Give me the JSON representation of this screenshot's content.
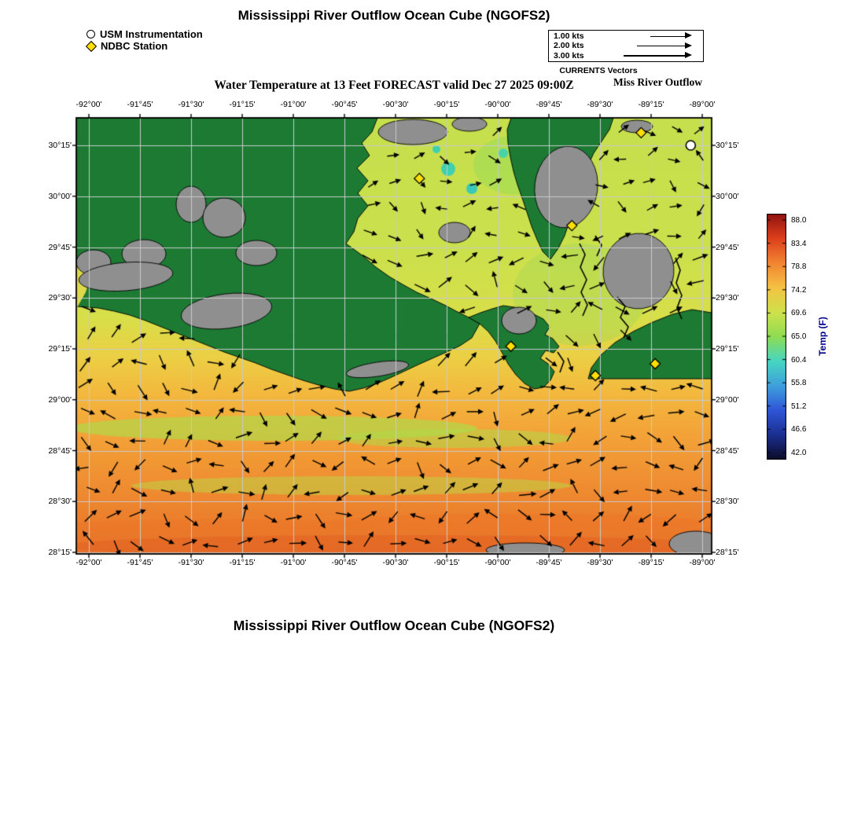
{
  "titles": {
    "top": "Mississippi River Outflow Ocean Cube (NGOFS2)",
    "subtitle": "Water Temperature at 13 Feet FORECAST valid Dec 27 2025 09:00Z",
    "region": "Miss River Outflow",
    "bottom": "Mississippi River Outflow Ocean Cube (NGOFS2)"
  },
  "legend": {
    "usm": "USM Instrumentation",
    "ndbc": "NDBC Station"
  },
  "vector_key": {
    "caption": "CURRENTS Vectors",
    "rows": [
      {
        "label": "1.00 kts",
        "length": 45
      },
      {
        "label": "2.00 kts",
        "length": 62
      },
      {
        "label": "3.00 kts",
        "length": 79
      }
    ]
  },
  "axes": {
    "lon_labels": [
      "-92°00'",
      "-91°45'",
      "-91°30'",
      "-91°15'",
      "-91°00'",
      "-90°45'",
      "-90°30'",
      "-90°15'",
      "-90°00'",
      "-89°45'",
      "-89°30'",
      "-89°15'",
      "-89°00'"
    ],
    "lat_labels": [
      "30°15'",
      "30°00'",
      "29°45'",
      "29°30'",
      "29°15'",
      "29°00'",
      "28°45'",
      "28°30'",
      "28°15'"
    ]
  },
  "colorbar": {
    "title": "Temp (F)",
    "title_color": "#00008b",
    "tick_labels": [
      "88.0",
      "83.4",
      "78.8",
      "74.2",
      "69.6",
      "65.0",
      "60.4",
      "55.8",
      "51.2",
      "46.6",
      "42.0"
    ],
    "stops": [
      {
        "value": 88.0,
        "color": "#8f1210"
      },
      {
        "value": 83.4,
        "color": "#dd3f1c"
      },
      {
        "value": 78.8,
        "color": "#f28432"
      },
      {
        "value": 74.2,
        "color": "#f5c242"
      },
      {
        "value": 69.6,
        "color": "#cfe24b"
      },
      {
        "value": 65.0,
        "color": "#8fdc52"
      },
      {
        "value": 60.4,
        "color": "#46d6c2"
      },
      {
        "value": 55.8,
        "color": "#3fa0dc"
      },
      {
        "value": 51.2,
        "color": "#2f55d8"
      },
      {
        "value": 46.6,
        "color": "#1b2f8f"
      },
      {
        "value": 42.0,
        "color": "#0b0b28"
      }
    ]
  },
  "stations": {
    "ndbc": [
      {
        "fx": 0.54,
        "fy": 0.139
      },
      {
        "fx": 0.889,
        "fy": 0.034
      },
      {
        "fx": 0.78,
        "fy": 0.247
      },
      {
        "fx": 0.684,
        "fy": 0.524
      },
      {
        "fx": 0.817,
        "fy": 0.591
      },
      {
        "fx": 0.911,
        "fy": 0.564
      }
    ],
    "usm": [
      {
        "fx": 0.967,
        "fy": 0.063
      }
    ]
  },
  "map_colors": {
    "land_green": "#1c7a33",
    "land_gray": "#8f8f8f",
    "grid_line": "#cacaca",
    "vector_black": "#000000",
    "ndbc_yellow": "#ffdf00",
    "usm_white": "#ffffff"
  },
  "chart_data": {
    "type": "heatmap",
    "title": "Water Temperature at 13 Feet FORECAST valid Dec 27 2025 09:00Z",
    "model": "Mississippi River Outflow Ocean Cube (NGOFS2)",
    "x_axis_ticks_lon": [
      "-92°00'",
      "-91°45'",
      "-91°30'",
      "-91°15'",
      "-91°00'",
      "-90°45'",
      "-90°30'",
      "-90°15'",
      "-90°00'",
      "-89°45'",
      "-89°30'",
      "-89°15'",
      "-89°00'"
    ],
    "y_axis_ticks_lat": [
      "30°15'",
      "30°00'",
      "29°45'",
      "29°30'",
      "29°15'",
      "29°00'",
      "28°45'",
      "28°30'",
      "28°15'"
    ],
    "colorbar_label": "Temp (F)",
    "colorbar_ticks": [
      88.0,
      83.4,
      78.8,
      74.2,
      69.6,
      65.0,
      60.4,
      55.8,
      51.2,
      46.6,
      42.0
    ],
    "colorbar_range": [
      42.0,
      88.0
    ],
    "overlay": "surface current vectors (kts)",
    "grid": true
  }
}
